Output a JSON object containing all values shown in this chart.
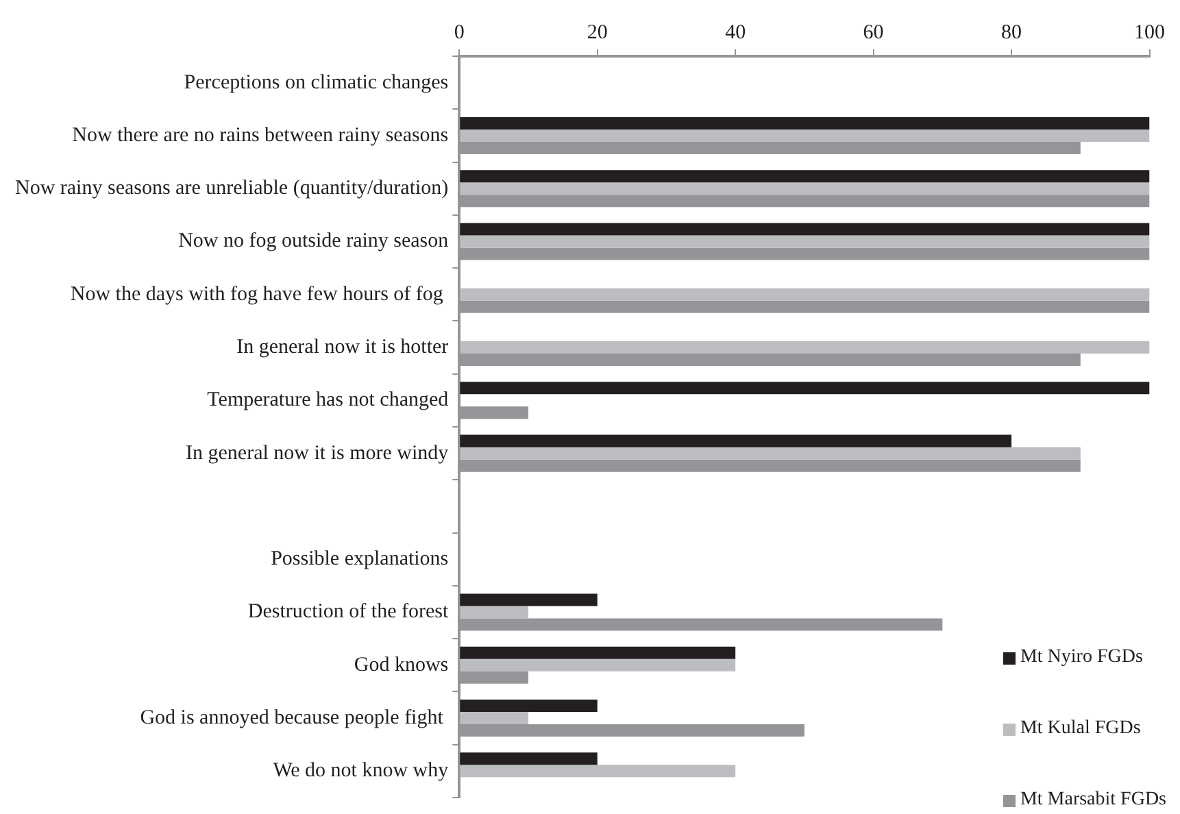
{
  "chart_data": {
    "type": "bar",
    "orientation": "horizontal",
    "categories": [
      "Perceptions on climatic changes",
      "Now there are no rains between rainy seasons",
      "Now rainy seasons are unreliable (quantity/duration)",
      "Now no fog outside rainy season",
      "Now the days with fog have few hours of fog ",
      "In general now it is hotter",
      "Temperature has not changed",
      "In general now it is more windy",
      null,
      "Possible explanations",
      "Destruction of the forest",
      "God knows",
      "God is annoyed because people fight ",
      "We do not know why"
    ],
    "series": [
      {
        "name": "Mt Nyiro FGDs",
        "color": "#231f20",
        "values": [
          null,
          100,
          100,
          100,
          null,
          null,
          100,
          80,
          null,
          null,
          20,
          40,
          20,
          20
        ]
      },
      {
        "name": "Mt Kulal FGDs",
        "color": "#bcbdc0",
        "values": [
          null,
          100,
          100,
          100,
          100,
          100,
          null,
          90,
          null,
          null,
          10,
          40,
          10,
          40
        ]
      },
      {
        "name": "Mt Marsabit FGDs",
        "color": "#939598",
        "values": [
          null,
          90,
          100,
          100,
          100,
          90,
          10,
          90,
          null,
          null,
          70,
          10,
          50,
          null
        ]
      }
    ],
    "xlim": [
      0,
      100
    ],
    "xticks": [
      0,
      20,
      40,
      60,
      80,
      100
    ],
    "legend": "bottom right"
  }
}
